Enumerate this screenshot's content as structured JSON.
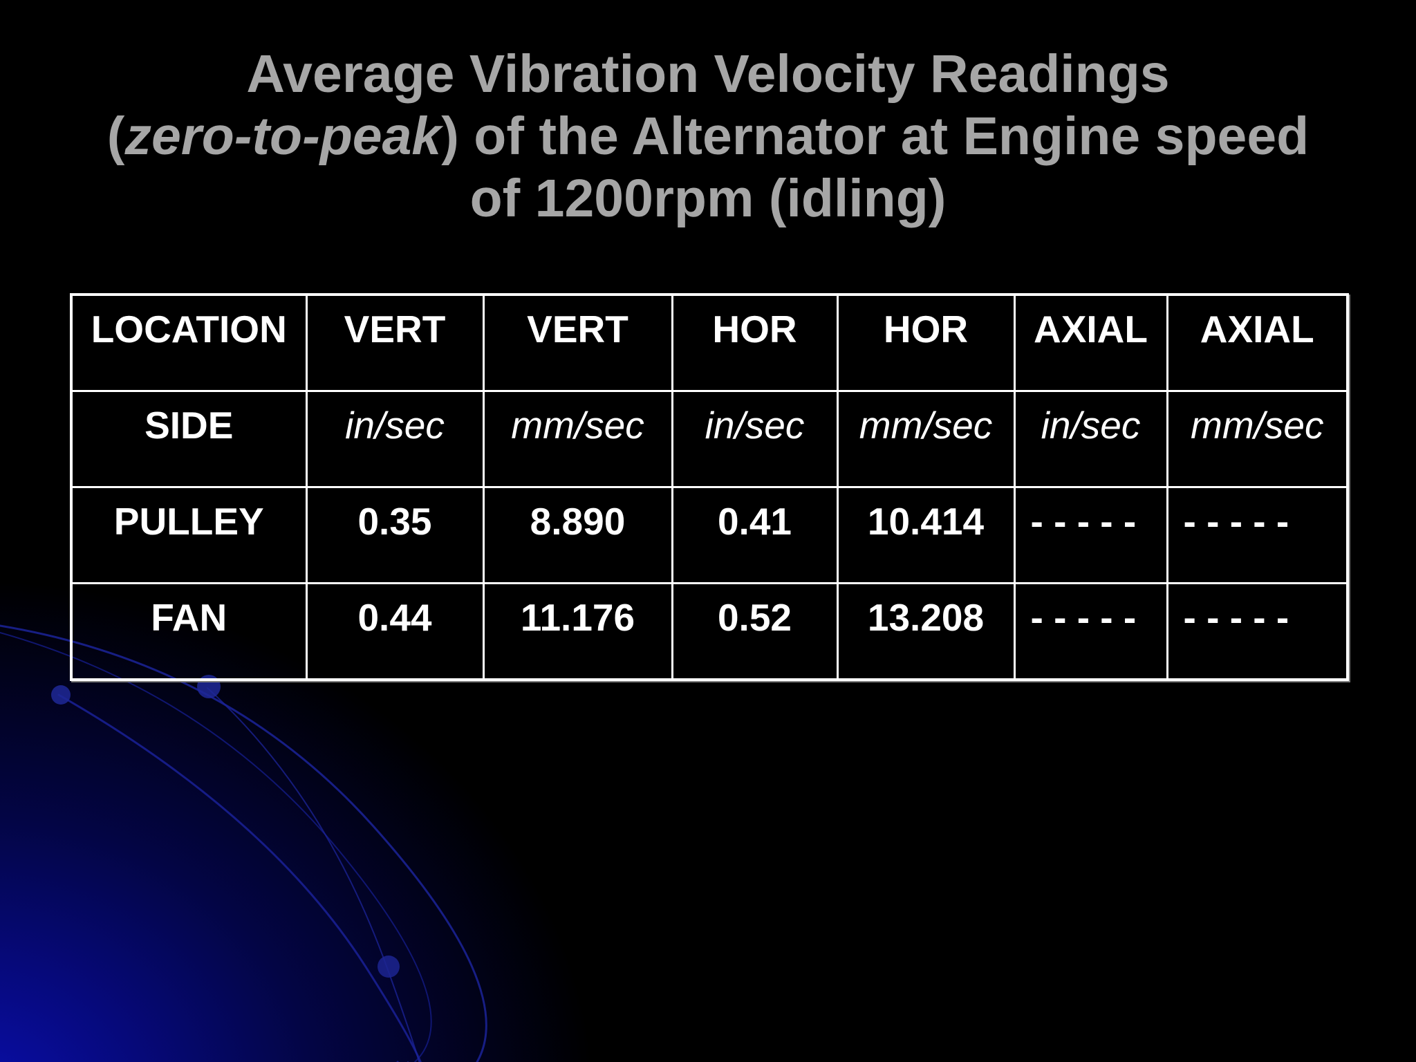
{
  "slide": {
    "title": {
      "line1": "Average Vibration Velocity Readings",
      "line2_open": "(",
      "line2_italic": "zero-to-peak",
      "line2_rest": ") of the Alternator at Engine speed",
      "line3": "of 1200rpm (idling)"
    },
    "colors": {
      "background": "#000000",
      "title": "#a6a6a6",
      "table_text": "#ffffff",
      "glow": "#0a0fae"
    }
  },
  "table": {
    "header": [
      "LOCATION",
      "VERT",
      "VERT",
      "HOR",
      "HOR",
      "AXIAL",
      "AXIAL"
    ],
    "units": [
      "SIDE",
      "in/sec",
      "mm/sec",
      "in/sec",
      "mm/sec",
      "in/sec",
      "mm/sec"
    ],
    "rows": [
      [
        "PULLEY",
        "0.35",
        "8.890",
        "0.41",
        "10.414",
        "- - - - -",
        "- - - - -"
      ],
      [
        "FAN",
        "0.44",
        "11.176",
        "0.52",
        "13.208",
        "- - - - -",
        "- - - - -"
      ]
    ]
  }
}
